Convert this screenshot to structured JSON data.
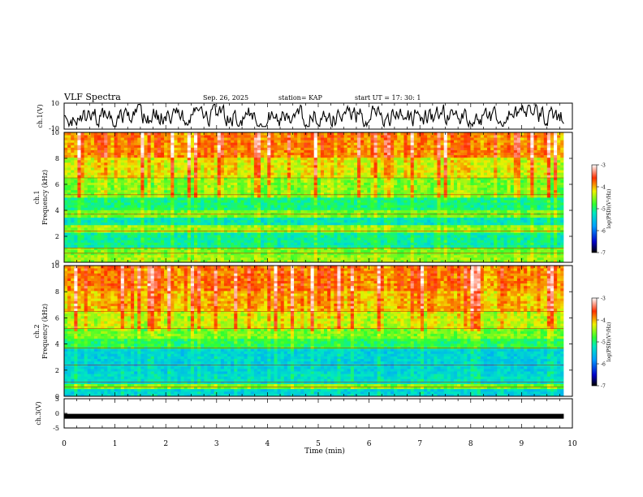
{
  "header": {
    "title": "VLF Spectra",
    "date": "Sep. 26, 2025",
    "station": "station= KAP",
    "start_ut": "start  UT  =   17: 30: 1"
  },
  "chart_data": [
    {
      "type": "line",
      "name": "ch1-waveform",
      "ylabel": "ch.1(V)",
      "ylim": [
        -10,
        10
      ],
      "y_ticks": [
        "10",
        "-10"
      ],
      "xlim": [
        0,
        10
      ],
      "x_extent_end": 9.83,
      "description": "noisy waveform oscillating roughly between -7 and 9 V"
    },
    {
      "type": "heatmap",
      "name": "ch1-spectrogram",
      "ylabel_lines": [
        "ch.1",
        "Frequency  (kHz)"
      ],
      "ylim": [
        0,
        10
      ],
      "y_ticks": [
        "0",
        "2",
        "4",
        "6",
        "8",
        "10"
      ],
      "xlim": [
        0,
        10
      ],
      "x_extent_end": 9.83,
      "colorbar": {
        "label": "log(PSD)(V²/Hz)",
        "range": [
          -7,
          -3
        ],
        "ticks": [
          "-3",
          "-4",
          "-5",
          "-6",
          "-7"
        ]
      },
      "band_levels": [
        {
          "f_range": [
            0,
            0.6
          ],
          "level": -4.5
        },
        {
          "f_range": [
            0.6,
            1.2
          ],
          "level": -4.6
        },
        {
          "f_range": [
            1.2,
            2.4
          ],
          "level": -5.1
        },
        {
          "f_range": [
            2.4,
            2.8
          ],
          "level": -4.5
        },
        {
          "f_range": [
            2.8,
            3.5
          ],
          "level": -5.2
        },
        {
          "f_range": [
            3.5,
            4.1
          ],
          "level": -4.6
        },
        {
          "f_range": [
            4.1,
            5.0
          ],
          "level": -5.0
        },
        {
          "f_range": [
            5.0,
            5.6
          ],
          "level": -4.5
        },
        {
          "f_range": [
            5.6,
            6.6
          ],
          "level": -4.5
        },
        {
          "f_range": [
            6.6,
            8.0
          ],
          "level": -4.2
        },
        {
          "f_range": [
            8.0,
            10.0
          ],
          "level": -3.8
        }
      ]
    },
    {
      "type": "heatmap",
      "name": "ch2-spectrogram",
      "ylabel_lines": [
        "ch.2",
        "Frequency  (kHz)"
      ],
      "ylim": [
        0,
        10
      ],
      "y_ticks": [
        "0",
        "2",
        "4",
        "6",
        "8",
        "10"
      ],
      "xlim": [
        0,
        10
      ],
      "x_extent_end": 9.83,
      "colorbar": {
        "label": "log(PSD)(V²/Hz)",
        "range": [
          -7,
          -3
        ],
        "ticks": [
          "-3",
          "-4",
          "-5",
          "-6",
          "-7"
        ]
      },
      "band_levels": [
        {
          "f_range": [
            0,
            0.5
          ],
          "level": -5.4
        },
        {
          "f_range": [
            0.5,
            1.0
          ],
          "level": -4.6
        },
        {
          "f_range": [
            1.0,
            1.8
          ],
          "level": -5.3
        },
        {
          "f_range": [
            1.8,
            3.6
          ],
          "level": -5.4
        },
        {
          "f_range": [
            3.6,
            4.4
          ],
          "level": -4.9
        },
        {
          "f_range": [
            4.4,
            5.2
          ],
          "level": -4.6
        },
        {
          "f_range": [
            5.2,
            6.6
          ],
          "level": -4.3
        },
        {
          "f_range": [
            6.6,
            8.0
          ],
          "level": -4.0
        },
        {
          "f_range": [
            8.0,
            10.0
          ],
          "level": -3.8
        }
      ]
    },
    {
      "type": "line",
      "name": "ch3-waveform",
      "ylabel": "ch.3(V)",
      "ylim": [
        -5,
        5
      ],
      "y_ticks": [
        "5",
        "0",
        "-5"
      ],
      "xlim": [
        0,
        10
      ],
      "x_extent_end": 9.83,
      "description": "thick flat line at about -1 V"
    }
  ],
  "x_axis": {
    "label": "Time  (min)",
    "ticks": [
      "0",
      "1",
      "2",
      "3",
      "4",
      "5",
      "6",
      "7",
      "8",
      "9",
      "10"
    ]
  }
}
